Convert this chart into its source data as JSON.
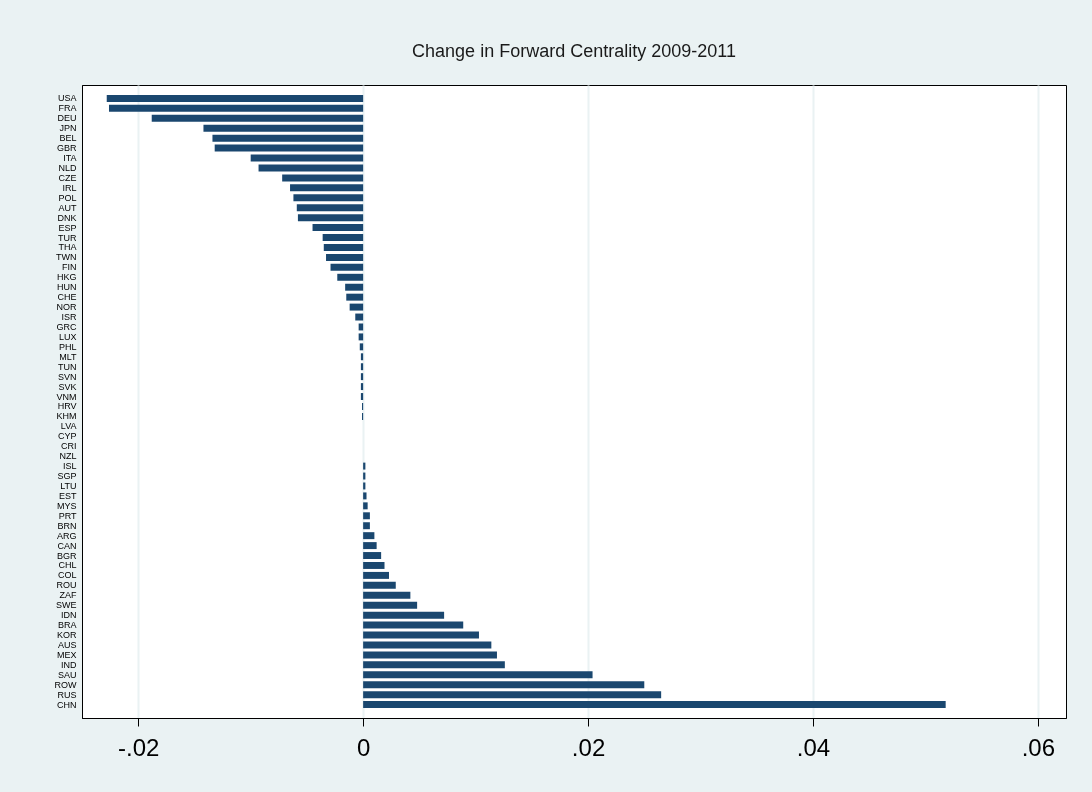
{
  "chart_data": {
    "type": "bar",
    "orientation": "horizontal",
    "title": "Change in Forward Centrality 2009-2011",
    "categories": [
      "USA",
      "FRA",
      "DEU",
      "JPN",
      "BEL",
      "GBR",
      "ITA",
      "NLD",
      "CZE",
      "IRL",
      "POL",
      "AUT",
      "DNK",
      "ESP",
      "TUR",
      "THA",
      "TWN",
      "FIN",
      "HKG",
      "HUN",
      "CHE",
      "NOR",
      "ISR",
      "GRC",
      "LUX",
      "PHL",
      "MLT",
      "TUN",
      "SVN",
      "SVK",
      "VNM",
      "HRV",
      "KHM",
      "LVA",
      "CYP",
      "CRI",
      "NZL",
      "ISL",
      "SGP",
      "LTU",
      "EST",
      "MYS",
      "PRT",
      "BRN",
      "ARG",
      "CAN",
      "BGR",
      "CHL",
      "COL",
      "ROU",
      "ZAF",
      "SWE",
      "IDN",
      "BRA",
      "KOR",
      "AUS",
      "MEX",
      "IND",
      "SAU",
      "ROW",
      "RUS",
      "CHN"
    ],
    "values": [
      -0.0228,
      -0.0226,
      -0.0188,
      -0.0142,
      -0.0134,
      -0.0132,
      -0.01,
      -0.0093,
      -0.0072,
      -0.0065,
      -0.0062,
      -0.0059,
      -0.0058,
      -0.0045,
      -0.0036,
      -0.0035,
      -0.0033,
      -0.0029,
      -0.0023,
      -0.0016,
      -0.0015,
      -0.0012,
      -0.0007,
      -0.0004,
      -0.0004,
      -0.0003,
      -0.0002,
      -0.0002,
      -0.0002,
      -0.0002,
      -0.0002,
      -0.0001,
      -0.0001,
      null,
      null,
      null,
      null,
      0.0002,
      0.0002,
      0.0002,
      0.0003,
      0.0004,
      0.0006,
      0.0006,
      0.001,
      0.0012,
      0.0016,
      0.0019,
      0.0023,
      0.0029,
      0.0042,
      0.0048,
      0.0072,
      0.0089,
      0.0103,
      0.0114,
      0.0119,
      0.0126,
      0.0204,
      0.025,
      0.0265,
      0.0518
    ],
    "color": "#1a476f",
    "xlim": [
      -0.025,
      0.0625
    ],
    "xticks": [
      {
        "value": -0.02,
        "label": "-.02"
      },
      0,
      {
        "value": 0.02,
        "label": ".02"
      },
      {
        "value": 0.04,
        "label": ".04"
      },
      {
        "value": 0.06,
        "label": ".06"
      }
    ],
    "grid": "x"
  }
}
